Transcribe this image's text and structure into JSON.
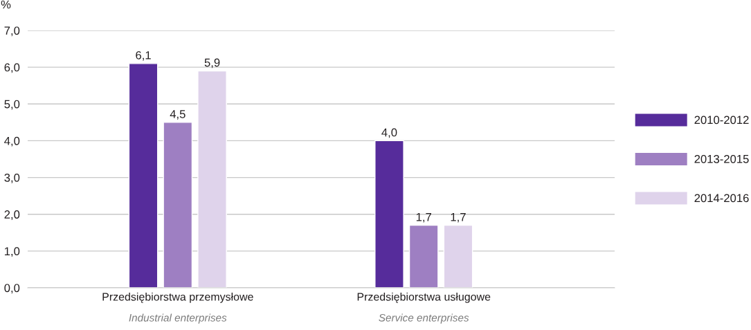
{
  "chart_data": {
    "type": "bar",
    "ylabel": "%",
    "categories": [
      "Przedsiębiorstwa przemysłowe\nIndustrial enterprises",
      "Przedsiębiorstwa usługowe\nService enterprises"
    ],
    "series": [
      {
        "name": "2010-2012",
        "color": "#562c9b",
        "values": [
          6.1,
          4.0
        ],
        "value_labels": [
          "6,1",
          "4,0"
        ]
      },
      {
        "name": "2013-2015",
        "color": "#9e7fc2",
        "values": [
          4.5,
          1.7
        ],
        "value_labels": [
          "4,5",
          "1,7"
        ]
      },
      {
        "name": "2014-2016",
        "color": "#dfd3eb",
        "values": [
          5.9,
          1.7
        ],
        "value_labels": [
          "5,9",
          "1,7"
        ]
      }
    ],
    "ylim": [
      0,
      7
    ],
    "yticks": [
      {
        "value": 0,
        "label": "0,0"
      },
      {
        "value": 1,
        "label": "1,0"
      },
      {
        "value": 2,
        "label": "2,0"
      },
      {
        "value": 3,
        "label": "3,0"
      },
      {
        "value": 4,
        "label": "4,0"
      },
      {
        "value": 5,
        "label": "5,0"
      },
      {
        "value": 6,
        "label": "6,0"
      },
      {
        "value": 7,
        "label": "7,0"
      }
    ],
    "grid": "y",
    "legend": "right"
  }
}
